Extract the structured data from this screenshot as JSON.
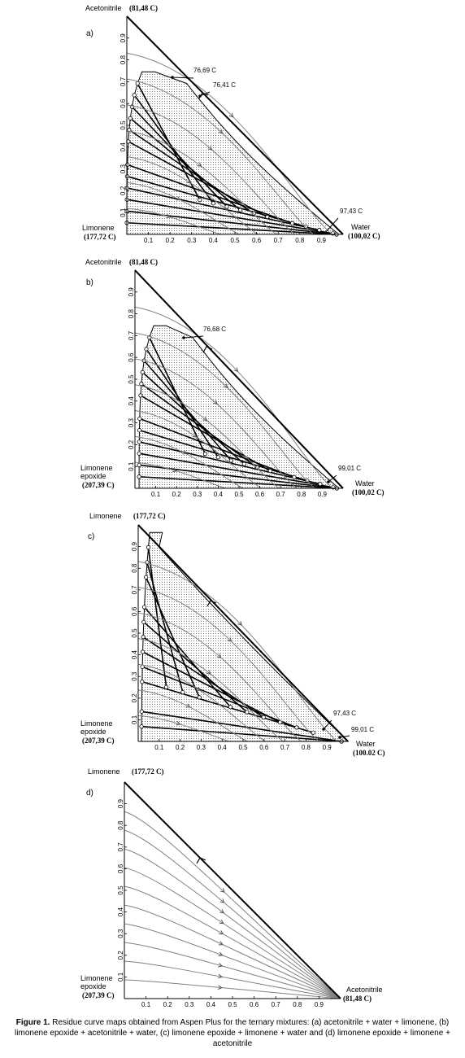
{
  "caption": {
    "label": "Figure 1.",
    "text": " Residue curve maps obtained from Aspen Plus for the ternary mixtures: (a) acetonitrile + water + limonene, (b) limonene epoxide + acetonitrile + water, (c) limonene epoxide + limonene + water and (d) limonene epoxide + limonene + acetonitrile"
  },
  "x_ticks": [
    "0.1",
    "0.2",
    "0.3",
    "0.4",
    "0.5",
    "0.6",
    "0.7",
    "0.8",
    "0.9"
  ],
  "y_ticks": [
    "0.1",
    "0.2",
    "0.3",
    "0.4",
    "0.5",
    "0.6",
    "0.7",
    "0.8",
    "0.9"
  ],
  "colors": {
    "tie_line": "#000000",
    "residue_curve": "#808080",
    "two_phase_fill": "#d9d9d9"
  },
  "panels": [
    {
      "tag": "a)",
      "top_vertex": {
        "name": "Acetonitrile",
        "temp": "(81,48 C)"
      },
      "left_vertex": {
        "name_lines": [
          "Limonene"
        ],
        "temp": "(177,72 C)"
      },
      "right_vertex": {
        "name": "Water",
        "temp": "(100,02 C)"
      },
      "annotations": [
        "76,69 C",
        "76,41 C",
        "97,43 C"
      ]
    },
    {
      "tag": "b)",
      "top_vertex": {
        "name": "Acetonitrile",
        "temp": "(81,48 C)"
      },
      "left_vertex": {
        "name_lines": [
          "Limonene",
          "epoxide"
        ],
        "temp": "(207,39 C)"
      },
      "right_vertex": {
        "name": "Water",
        "temp": "(100,02 C)"
      },
      "annotations": [
        "76,68 C",
        "99,01 C"
      ]
    },
    {
      "tag": "c)",
      "top_vertex": {
        "name": "Limonene",
        "temp": "(177,72 C)"
      },
      "left_vertex": {
        "name_lines": [
          "Limonene",
          "epoxide"
        ],
        "temp": "(207,39 C)"
      },
      "right_vertex": {
        "name": "Water",
        "temp": "(100.02 C)"
      },
      "annotations": [
        "97,43 C",
        "99,01 C"
      ]
    },
    {
      "tag": "d)",
      "top_vertex": {
        "name": "Limonene",
        "temp": "(177,72 C)"
      },
      "left_vertex": {
        "name_lines": [
          "Limonene",
          "epoxide"
        ],
        "temp": "(207,39 C)"
      },
      "right_vertex": {
        "name": "Acetonitrile",
        "temp": "(81,48 C)"
      },
      "annotations": []
    }
  ]
}
